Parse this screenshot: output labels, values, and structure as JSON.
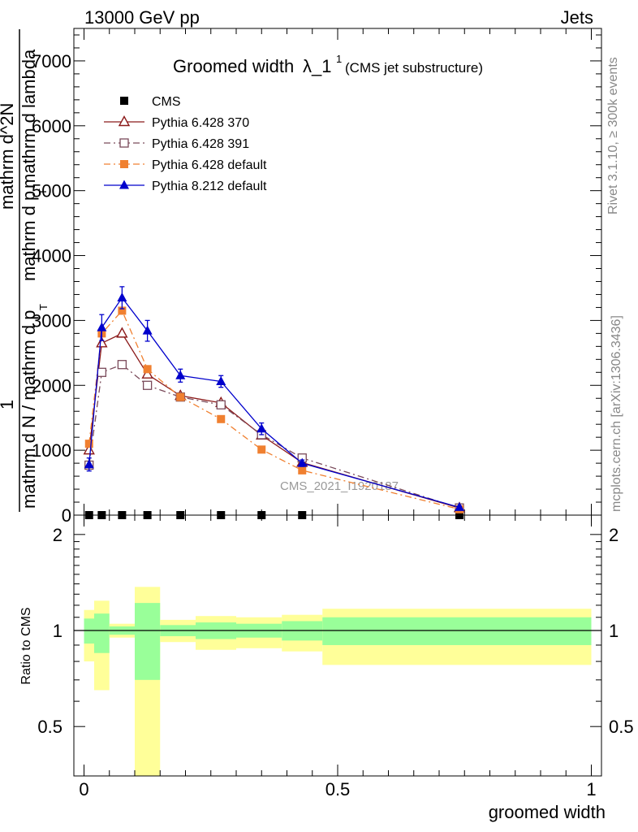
{
  "header": {
    "energy": "13000 GeV pp",
    "category": "Jets"
  },
  "side": {
    "rivet": "Rivet 3.1.10, ≥ 300k events",
    "mcplots": "mcplots.cern.ch [arXiv:1306.3436]"
  },
  "chart_data": [
    {
      "type": "line",
      "title_main": "Groomed width",
      "title_symbol": "λ_1",
      "title_sup": "1",
      "title_sub": "(CMS jet substructure)",
      "ylabel_lines": [
        "1",
        "mathrm d N / mathrm d p",
        "T",
        "mathrm d^2N",
        "mathrm d p",
        "T",
        " mathrm d lambda"
      ],
      "watermark": "CMS_2021_I1920187",
      "xlim": [
        -0.02,
        1.02
      ],
      "ylim": [
        0,
        7500
      ],
      "yticks": [
        {
          "v": 0,
          "label": "0"
        },
        {
          "v": 1000,
          "label": "1000"
        },
        {
          "v": 2000,
          "label": "2000"
        },
        {
          "v": 3000,
          "label": "3000"
        },
        {
          "v": 4000,
          "label": "4000"
        },
        {
          "v": 5000,
          "label": "5000"
        },
        {
          "v": 6000,
          "label": "6000"
        },
        {
          "v": 7000,
          "label": "7000"
        }
      ],
      "cms_x": [
        0.01,
        0.035,
        0.075,
        0.125,
        0.19,
        0.27,
        0.35,
        0.43,
        0.74
      ],
      "series": [
        {
          "name": "CMS",
          "color": "#000000",
          "marker": "square-filled",
          "dash": "",
          "x": [],
          "y": [],
          "err": []
        },
        {
          "name": "Pythia 6.428 370",
          "color": "#8b1a1a",
          "marker": "triangle-open",
          "dash": "",
          "x": [
            0.01,
            0.035,
            0.075,
            0.125,
            0.19,
            0.27,
            0.35,
            0.43,
            0.74
          ],
          "y": [
            1000,
            2650,
            2800,
            2170,
            1840,
            1730,
            1230,
            810,
            110
          ],
          "err": [
            0,
            0,
            0,
            0,
            0,
            0,
            0,
            0,
            0
          ]
        },
        {
          "name": "Pythia 6.428 391",
          "color": "#7a4a5a",
          "marker": "square-open",
          "dash": "8,4,2,4",
          "x": [
            0.01,
            0.035,
            0.075,
            0.125,
            0.19,
            0.27,
            0.35,
            0.43,
            0.74
          ],
          "y": [
            770,
            2200,
            2320,
            2000,
            1820,
            1700,
            1240,
            880,
            110
          ],
          "err": [
            0,
            0,
            0,
            0,
            0,
            0,
            0,
            0,
            0
          ]
        },
        {
          "name": "Pythia 6.428 default",
          "color": "#f08030",
          "marker": "square-filled",
          "dash": "8,4,2,4",
          "x": [
            0.01,
            0.035,
            0.075,
            0.125,
            0.19,
            0.27,
            0.35,
            0.43,
            0.74
          ],
          "y": [
            1100,
            2800,
            3150,
            2250,
            1820,
            1480,
            1010,
            690,
            90
          ],
          "err": [
            0,
            0,
            0,
            0,
            0,
            0,
            0,
            0,
            0
          ]
        },
        {
          "name": "Pythia 8.212 default",
          "color": "#0000cc",
          "marker": "triangle-filled",
          "dash": "",
          "x": [
            0.01,
            0.035,
            0.075,
            0.125,
            0.19,
            0.27,
            0.35,
            0.43,
            0.74
          ],
          "y": [
            780,
            2890,
            3350,
            2840,
            2150,
            2060,
            1330,
            800,
            120
          ],
          "err": [
            100,
            200,
            170,
            160,
            100,
            90,
            90,
            50,
            20
          ]
        }
      ]
    },
    {
      "type": "area",
      "ylabel": "Ratio to CMS",
      "xlabel": "groomed width",
      "ylim": [
        0.35,
        2.3
      ],
      "yticks": [
        {
          "v": 0.5,
          "label": "0.5"
        },
        {
          "v": 1,
          "label": "1"
        },
        {
          "v": 2,
          "label": "2"
        }
      ],
      "xticks": [
        {
          "v": 0,
          "label": "0"
        },
        {
          "v": 0.5,
          "label": "0.5"
        },
        {
          "v": 1,
          "label": "1"
        }
      ],
      "bins": [
        {
          "lo": 0.0,
          "hi": 0.02,
          "g_lo": 0.91,
          "g_hi": 1.09,
          "y_lo": 0.8,
          "y_hi": 1.16
        },
        {
          "lo": 0.02,
          "hi": 0.05,
          "g_lo": 0.85,
          "g_hi": 1.13,
          "y_lo": 0.65,
          "y_hi": 1.24
        },
        {
          "lo": 0.05,
          "hi": 0.1,
          "g_lo": 0.97,
          "g_hi": 1.03,
          "y_lo": 0.95,
          "y_hi": 1.05
        },
        {
          "lo": 0.1,
          "hi": 0.15,
          "g_lo": 0.7,
          "g_hi": 1.22,
          "y_lo": 0.35,
          "y_hi": 1.37
        },
        {
          "lo": 0.15,
          "hi": 0.22,
          "g_lo": 0.96,
          "g_hi": 1.04,
          "y_lo": 0.92,
          "y_hi": 1.08
        },
        {
          "lo": 0.22,
          "hi": 0.3,
          "g_lo": 0.94,
          "g_hi": 1.06,
          "y_lo": 0.87,
          "y_hi": 1.11
        },
        {
          "lo": 0.3,
          "hi": 0.39,
          "g_lo": 0.95,
          "g_hi": 1.05,
          "y_lo": 0.88,
          "y_hi": 1.1
        },
        {
          "lo": 0.39,
          "hi": 0.47,
          "g_lo": 0.93,
          "g_hi": 1.07,
          "y_lo": 0.86,
          "y_hi": 1.12
        },
        {
          "lo": 0.47,
          "hi": 1.0,
          "g_lo": 0.9,
          "g_hi": 1.1,
          "y_lo": 0.78,
          "y_hi": 1.17
        }
      ],
      "colors": {
        "green": "#99ff99",
        "yellow": "#ffff99"
      }
    }
  ]
}
